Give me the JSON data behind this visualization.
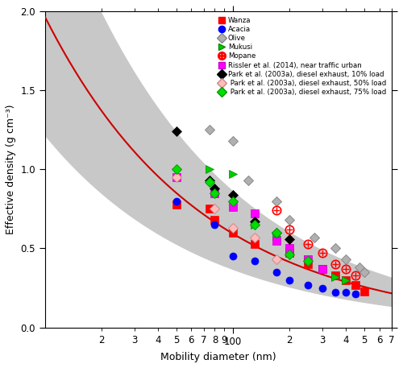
{
  "xlabel": "Mobility diameter (nm)",
  "ylabel": "Effective density (g cm⁻³)",
  "xlim": [
    10,
    700
  ],
  "ylim": [
    0.0,
    2.0
  ],
  "background_color": "#ffffff",
  "wanza": {
    "label": "Wanza",
    "color": "#ff0000",
    "x": [
      50,
      75,
      80,
      100,
      130,
      200,
      250,
      300,
      350,
      400,
      450,
      500
    ],
    "y": [
      0.78,
      0.75,
      0.68,
      0.6,
      0.53,
      0.47,
      0.4,
      0.37,
      0.33,
      0.3,
      0.27,
      0.23
    ]
  },
  "acacia": {
    "label": "Acacia",
    "color": "#0000ff",
    "x": [
      50,
      80,
      100,
      130,
      170,
      200,
      250,
      300,
      350,
      400,
      450
    ],
    "y": [
      0.8,
      0.65,
      0.45,
      0.42,
      0.35,
      0.3,
      0.27,
      0.25,
      0.22,
      0.22,
      0.21
    ]
  },
  "olive": {
    "label": "Olive",
    "x": [
      75,
      100,
      120,
      170,
      200,
      270,
      350,
      400,
      470,
      500
    ],
    "y": [
      1.25,
      1.18,
      0.93,
      0.8,
      0.68,
      0.57,
      0.5,
      0.43,
      0.38,
      0.35
    ]
  },
  "mukusi": {
    "label": "Mukusi",
    "x": [
      75,
      100,
      130,
      170,
      200,
      250,
      300,
      350,
      400
    ],
    "y": [
      1.0,
      0.97,
      0.65,
      0.58,
      0.48,
      0.43,
      0.37,
      0.32,
      0.3
    ]
  },
  "mopane": {
    "label": "Mopane",
    "x": [
      170,
      200,
      250,
      300,
      350,
      400,
      450
    ],
    "y": [
      0.74,
      0.62,
      0.53,
      0.47,
      0.4,
      0.37,
      0.33
    ]
  },
  "rissler": {
    "label": "Rissler et al. (2014), near traffic urban",
    "x": [
      50,
      80,
      100,
      130,
      170,
      200,
      250,
      300
    ],
    "y": [
      0.95,
      0.85,
      0.76,
      0.72,
      0.55,
      0.5,
      0.43,
      0.37
    ]
  },
  "park10": {
    "label": "Park et al. (2003a), diesel exhaust, 10% load",
    "x": [
      50,
      75,
      80,
      100,
      130,
      170,
      200
    ],
    "y": [
      1.24,
      0.93,
      0.88,
      0.84,
      0.67,
      0.6,
      0.56
    ]
  },
  "park50": {
    "label": "Park et al. (2003a), diesel exhaust, 50% load",
    "x": [
      50,
      80,
      100,
      130,
      170
    ],
    "y": [
      0.95,
      0.75,
      0.63,
      0.57,
      0.43
    ]
  },
  "park75": {
    "label": "Park et al. (2003a), diesel exhaust, 75% load",
    "x": [
      50,
      75,
      80,
      100,
      130,
      170,
      200,
      250
    ],
    "y": [
      1.0,
      0.92,
      0.85,
      0.8,
      0.65,
      0.6,
      0.46,
      0.42
    ]
  },
  "fit_a": 6.5,
  "fit_b": -0.52,
  "fit_upper_factor": 1.45,
  "fit_lower_factor": 0.62,
  "fit_color": "#cc0000",
  "shade_color": "#c8c8c8",
  "yticks": [
    0.0,
    0.5,
    1.0,
    1.5,
    2.0
  ]
}
